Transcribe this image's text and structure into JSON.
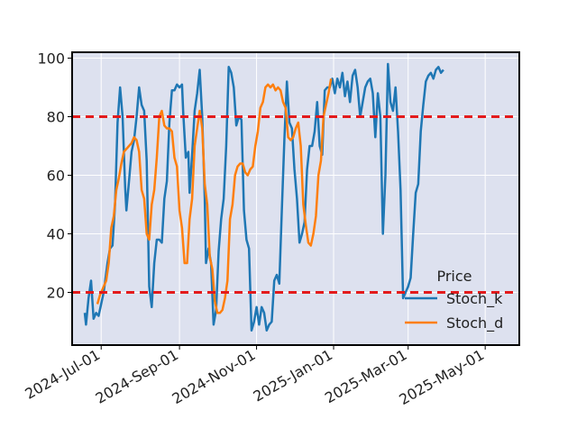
{
  "chart_data": {
    "type": "line",
    "title": "",
    "xlabel": "",
    "ylabel": "",
    "x_range": [
      "2024-06-08",
      "2025-05-28"
    ],
    "ylim": [
      2,
      102
    ],
    "background_color": "#dde1ef",
    "grid": true,
    "x_ticks": [
      {
        "date": "2024-07-01",
        "label": "2024-Jul-01"
      },
      {
        "date": "2024-09-01",
        "label": "2024-Sep-01"
      },
      {
        "date": "2024-11-01",
        "label": "2024-Nov-01"
      },
      {
        "date": "2025-01-01",
        "label": "2025-Jan-01"
      },
      {
        "date": "2025-03-01",
        "label": "2025-Mar-01"
      },
      {
        "date": "2025-05-01",
        "label": "2025-May-01"
      }
    ],
    "y_ticks": [
      20,
      40,
      60,
      80,
      100
    ],
    "reference_lines": [
      {
        "y": 80,
        "color": "#e31a1c",
        "style": "dashed"
      },
      {
        "y": 20,
        "color": "#e31a1c",
        "style": "dashed"
      }
    ],
    "legend": {
      "title": "Price",
      "position": "bottom-right"
    },
    "series": [
      {
        "name": "Stoch_k",
        "color": "#1f77b4",
        "points": [
          [
            "2024-06-18",
            13
          ],
          [
            "2024-06-19",
            9
          ],
          [
            "2024-06-21",
            18
          ],
          [
            "2024-06-23",
            24
          ],
          [
            "2024-06-25",
            11
          ],
          [
            "2024-06-27",
            13
          ],
          [
            "2024-06-29",
            12
          ],
          [
            "2024-07-01",
            16
          ],
          [
            "2024-07-03",
            20
          ],
          [
            "2024-07-06",
            30
          ],
          [
            "2024-07-08",
            35
          ],
          [
            "2024-07-10",
            36
          ],
          [
            "2024-07-12",
            50
          ],
          [
            "2024-07-14",
            78
          ],
          [
            "2024-07-16",
            90
          ],
          [
            "2024-07-18",
            80
          ],
          [
            "2024-07-20",
            56
          ],
          [
            "2024-07-21",
            48
          ],
          [
            "2024-07-23",
            58
          ],
          [
            "2024-07-25",
            68
          ],
          [
            "2024-07-27",
            72
          ],
          [
            "2024-07-29",
            80
          ],
          [
            "2024-07-31",
            90
          ],
          [
            "2024-08-02",
            84
          ],
          [
            "2024-08-04",
            82
          ],
          [
            "2024-08-06",
            65
          ],
          [
            "2024-08-08",
            22
          ],
          [
            "2024-08-10",
            15
          ],
          [
            "2024-08-12",
            30
          ],
          [
            "2024-08-14",
            38
          ],
          [
            "2024-08-16",
            38
          ],
          [
            "2024-08-18",
            37
          ],
          [
            "2024-08-20",
            52
          ],
          [
            "2024-08-22",
            58
          ],
          [
            "2024-08-24",
            78
          ],
          [
            "2024-08-26",
            89
          ],
          [
            "2024-08-28",
            89
          ],
          [
            "2024-08-30",
            91
          ],
          [
            "2024-09-01",
            90
          ],
          [
            "2024-09-03",
            91
          ],
          [
            "2024-09-04",
            81
          ],
          [
            "2024-09-06",
            66
          ],
          [
            "2024-09-08",
            68
          ],
          [
            "2024-09-09",
            54
          ],
          [
            "2024-09-11",
            67
          ],
          [
            "2024-09-13",
            82
          ],
          [
            "2024-09-15",
            88
          ],
          [
            "2024-09-17",
            96
          ],
          [
            "2024-09-19",
            80
          ],
          [
            "2024-09-21",
            52
          ],
          [
            "2024-09-22",
            30
          ],
          [
            "2024-09-24",
            35
          ],
          [
            "2024-09-26",
            30
          ],
          [
            "2024-09-28",
            9
          ],
          [
            "2024-09-30",
            14
          ],
          [
            "2024-10-02",
            34
          ],
          [
            "2024-10-04",
            45
          ],
          [
            "2024-10-06",
            52
          ],
          [
            "2024-10-08",
            70
          ],
          [
            "2024-10-10",
            97
          ],
          [
            "2024-10-12",
            95
          ],
          [
            "2024-10-14",
            90
          ],
          [
            "2024-10-16",
            77
          ],
          [
            "2024-10-18",
            80
          ],
          [
            "2024-10-20",
            79
          ],
          [
            "2024-10-22",
            48
          ],
          [
            "2024-10-24",
            38
          ],
          [
            "2024-10-26",
            35
          ],
          [
            "2024-10-28",
            7
          ],
          [
            "2024-10-30",
            10
          ],
          [
            "2024-11-01",
            15
          ],
          [
            "2024-11-03",
            9
          ],
          [
            "2024-11-05",
            15
          ],
          [
            "2024-11-07",
            13
          ],
          [
            "2024-11-09",
            7
          ],
          [
            "2024-11-11",
            9
          ],
          [
            "2024-11-13",
            10
          ],
          [
            "2024-11-15",
            24
          ],
          [
            "2024-11-17",
            26
          ],
          [
            "2024-11-19",
            23
          ],
          [
            "2024-11-21",
            48
          ],
          [
            "2024-11-23",
            72
          ],
          [
            "2024-11-25",
            92
          ],
          [
            "2024-11-27",
            78
          ],
          [
            "2024-11-29",
            76
          ],
          [
            "2024-12-01",
            62
          ],
          [
            "2024-12-03",
            52
          ],
          [
            "2024-12-05",
            37
          ],
          [
            "2024-12-07",
            40
          ],
          [
            "2024-12-09",
            44
          ],
          [
            "2024-12-11",
            62
          ],
          [
            "2024-12-13",
            70
          ],
          [
            "2024-12-15",
            70
          ],
          [
            "2024-12-17",
            75
          ],
          [
            "2024-12-19",
            85
          ],
          [
            "2024-12-21",
            70
          ],
          [
            "2024-12-23",
            67
          ],
          [
            "2024-12-25",
            89
          ],
          [
            "2024-12-27",
            90
          ],
          [
            "2024-12-29",
            90
          ],
          [
            "2024-12-31",
            93
          ],
          [
            "2025-01-02",
            88
          ],
          [
            "2025-01-04",
            93
          ],
          [
            "2025-01-06",
            90
          ],
          [
            "2025-01-08",
            95
          ],
          [
            "2025-01-10",
            87
          ],
          [
            "2025-01-12",
            92
          ],
          [
            "2025-01-14",
            85
          ],
          [
            "2025-01-16",
            94
          ],
          [
            "2025-01-18",
            96
          ],
          [
            "2025-01-20",
            90
          ],
          [
            "2025-01-22",
            80
          ],
          [
            "2025-01-24",
            85
          ],
          [
            "2025-01-26",
            90
          ],
          [
            "2025-01-28",
            92
          ],
          [
            "2025-01-30",
            93
          ],
          [
            "2025-02-01",
            88
          ],
          [
            "2025-02-03",
            73
          ],
          [
            "2025-02-05",
            88
          ],
          [
            "2025-02-07",
            80
          ],
          [
            "2025-02-09",
            40
          ],
          [
            "2025-02-11",
            60
          ],
          [
            "2025-02-13",
            98
          ],
          [
            "2025-02-15",
            85
          ],
          [
            "2025-02-17",
            82
          ],
          [
            "2025-02-19",
            90
          ],
          [
            "2025-02-21",
            75
          ],
          [
            "2025-02-23",
            55
          ],
          [
            "2025-02-25",
            18
          ],
          [
            "2025-02-27",
            20
          ],
          [
            "2025-03-01",
            22
          ],
          [
            "2025-03-03",
            25
          ],
          [
            "2025-03-05",
            40
          ],
          [
            "2025-03-07",
            54
          ],
          [
            "2025-03-09",
            57
          ],
          [
            "2025-03-11",
            75
          ],
          [
            "2025-03-13",
            84
          ],
          [
            "2025-03-15",
            92
          ],
          [
            "2025-03-17",
            94
          ],
          [
            "2025-03-19",
            95
          ],
          [
            "2025-03-21",
            93
          ],
          [
            "2025-03-23",
            96
          ],
          [
            "2025-03-25",
            97
          ],
          [
            "2025-03-27",
            95
          ],
          [
            "2025-03-29",
            96
          ]
        ]
      },
      {
        "name": "Stoch_d",
        "color": "#ff7f0e",
        "points": [
          [
            "2024-06-28",
            16
          ],
          [
            "2024-06-30",
            19
          ],
          [
            "2024-07-02",
            21
          ],
          [
            "2024-07-05",
            24
          ],
          [
            "2024-07-07",
            30
          ],
          [
            "2024-07-09",
            42
          ],
          [
            "2024-07-11",
            46
          ],
          [
            "2024-07-13",
            55
          ],
          [
            "2024-07-15",
            59
          ],
          [
            "2024-07-17",
            64
          ],
          [
            "2024-07-19",
            68
          ],
          [
            "2024-07-21",
            69
          ],
          [
            "2024-07-23",
            70
          ],
          [
            "2024-07-25",
            71
          ],
          [
            "2024-07-27",
            73
          ],
          [
            "2024-07-29",
            72
          ],
          [
            "2024-07-31",
            68
          ],
          [
            "2024-08-02",
            55
          ],
          [
            "2024-08-04",
            52
          ],
          [
            "2024-08-06",
            40
          ],
          [
            "2024-08-08",
            38
          ],
          [
            "2024-08-10",
            50
          ],
          [
            "2024-08-12",
            55
          ],
          [
            "2024-08-14",
            66
          ],
          [
            "2024-08-16",
            80
          ],
          [
            "2024-08-18",
            82
          ],
          [
            "2024-08-20",
            77
          ],
          [
            "2024-08-22",
            76
          ],
          [
            "2024-08-24",
            76
          ],
          [
            "2024-08-26",
            75
          ],
          [
            "2024-08-28",
            66
          ],
          [
            "2024-08-30",
            63
          ],
          [
            "2024-09-01",
            48
          ],
          [
            "2024-09-03",
            42
          ],
          [
            "2024-09-05",
            30
          ],
          [
            "2024-09-07",
            30
          ],
          [
            "2024-09-09",
            45
          ],
          [
            "2024-09-11",
            52
          ],
          [
            "2024-09-13",
            70
          ],
          [
            "2024-09-15",
            76
          ],
          [
            "2024-09-17",
            82
          ],
          [
            "2024-09-19",
            76
          ],
          [
            "2024-09-21",
            57
          ],
          [
            "2024-09-23",
            50
          ],
          [
            "2024-09-25",
            32
          ],
          [
            "2024-09-27",
            28
          ],
          [
            "2024-09-29",
            17
          ],
          [
            "2024-10-01",
            13
          ],
          [
            "2024-10-03",
            13
          ],
          [
            "2024-10-05",
            14
          ],
          [
            "2024-10-07",
            18
          ],
          [
            "2024-10-09",
            24
          ],
          [
            "2024-10-11",
            45
          ],
          [
            "2024-10-13",
            50
          ],
          [
            "2024-10-15",
            60
          ],
          [
            "2024-10-17",
            63
          ],
          [
            "2024-10-19",
            64
          ],
          [
            "2024-10-21",
            64
          ],
          [
            "2024-10-23",
            61
          ],
          [
            "2024-10-25",
            60
          ],
          [
            "2024-10-27",
            62
          ],
          [
            "2024-10-29",
            63
          ],
          [
            "2024-10-31",
            70
          ],
          [
            "2024-11-02",
            75
          ],
          [
            "2024-11-04",
            83
          ],
          [
            "2024-11-06",
            85
          ],
          [
            "2024-11-08",
            90
          ],
          [
            "2024-11-10",
            91
          ],
          [
            "2024-11-12",
            90
          ],
          [
            "2024-11-14",
            91
          ],
          [
            "2024-11-16",
            89
          ],
          [
            "2024-11-18",
            90
          ],
          [
            "2024-11-20",
            89
          ],
          [
            "2024-11-22",
            85
          ],
          [
            "2024-11-24",
            83
          ],
          [
            "2024-11-26",
            73
          ],
          [
            "2024-11-28",
            72
          ],
          [
            "2024-11-30",
            73
          ],
          [
            "2024-12-02",
            76
          ],
          [
            "2024-12-04",
            78
          ],
          [
            "2024-12-06",
            70
          ],
          [
            "2024-12-08",
            50
          ],
          [
            "2024-12-10",
            43
          ],
          [
            "2024-12-12",
            37
          ],
          [
            "2024-12-14",
            36
          ],
          [
            "2024-12-16",
            40
          ],
          [
            "2024-12-18",
            46
          ],
          [
            "2024-12-20",
            60
          ],
          [
            "2024-12-22",
            65
          ],
          [
            "2024-12-24",
            80
          ],
          [
            "2024-12-26",
            84
          ],
          [
            "2024-12-28",
            88
          ],
          [
            "2024-12-30",
            93
          ]
        ]
      }
    ]
  }
}
